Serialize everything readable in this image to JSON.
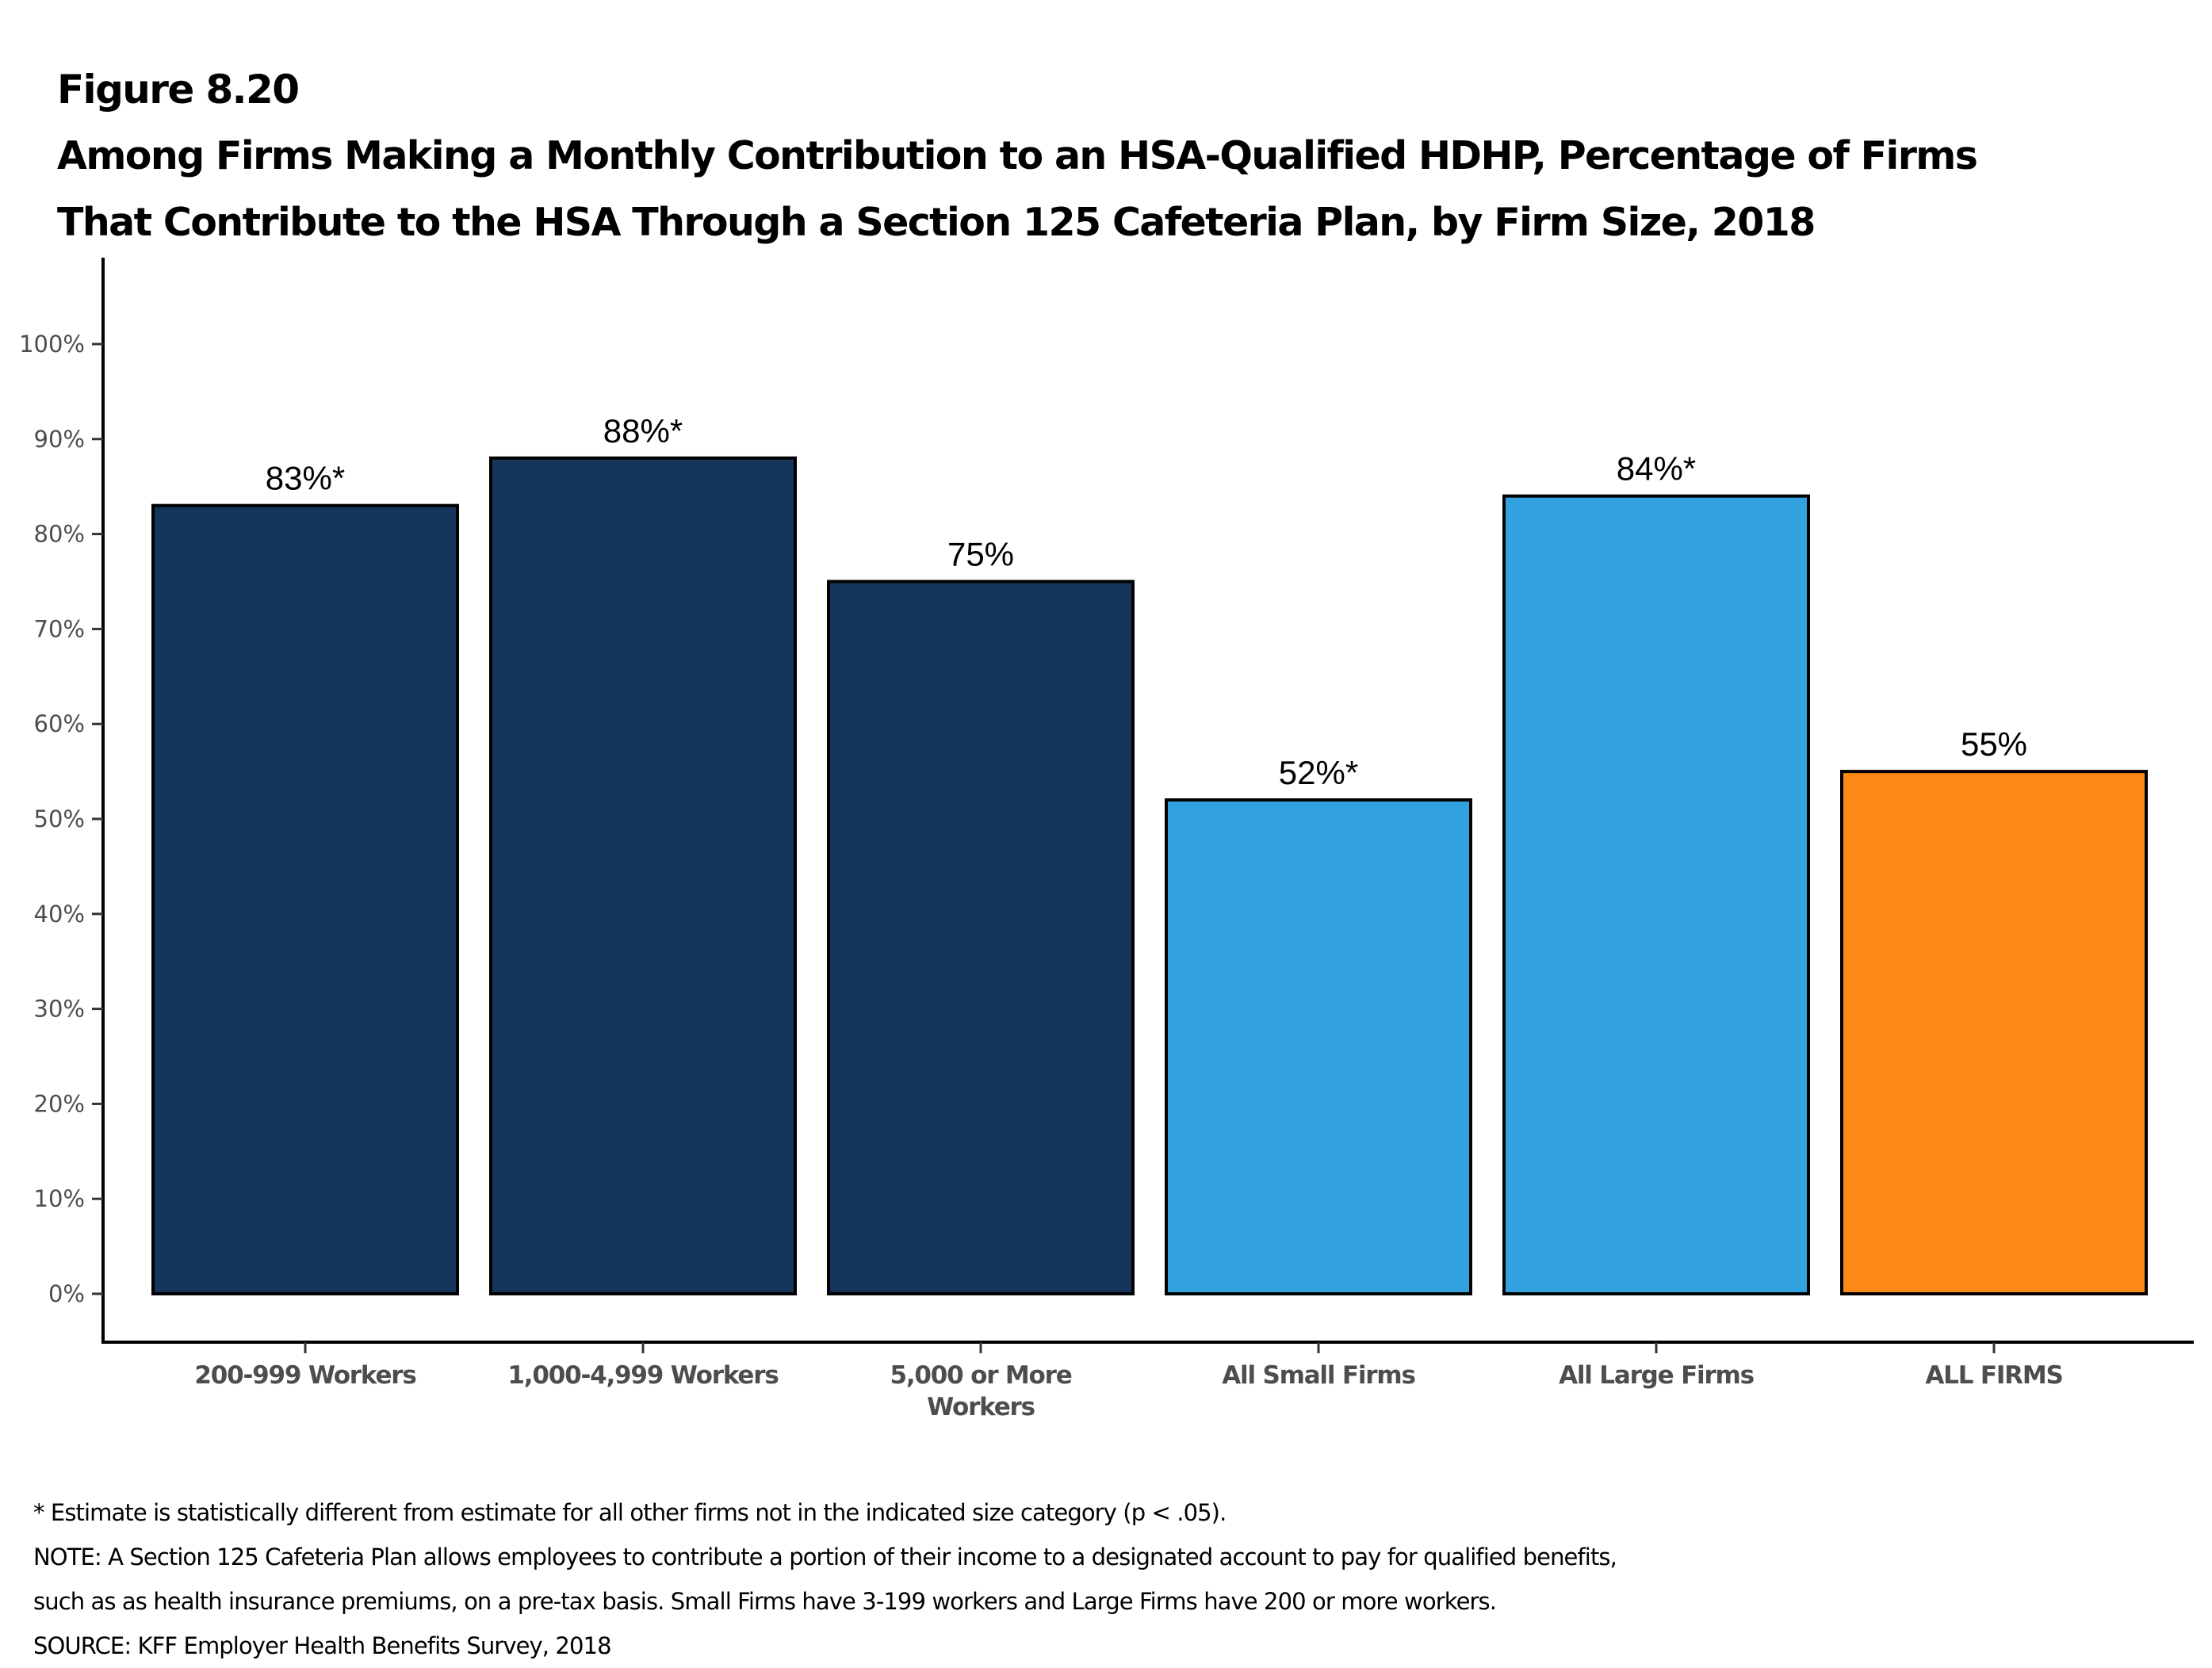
{
  "header": {
    "figure_number": "Figure 8.20",
    "title_lines": [
      "Among Firms Making a Monthly Contribution to an HSA-Qualified HDHP, Percentage of Firms",
      "That Contribute to the HSA Through a Section 125 Cafeteria Plan, by Firm Size, 2018"
    ]
  },
  "chart_data": {
    "type": "bar",
    "title": "Among Firms Making a Monthly Contribution to an HSA-Qualified HDHP, Percentage of Firms That Contribute to the HSA Through a Section 125 Cafeteria Plan, by Firm Size, 2018",
    "xlabel": "",
    "ylabel": "",
    "categories": [
      [
        "200-999 Workers"
      ],
      [
        "1,000-4,999 Workers"
      ],
      [
        "5,000 or More",
        "Workers"
      ],
      [
        "All Small Firms"
      ],
      [
        "All Large Firms"
      ],
      [
        "ALL FIRMS"
      ]
    ],
    "values": [
      83,
      88,
      75,
      52,
      84,
      55
    ],
    "data_labels": [
      "83%*",
      "88%*",
      "75%",
      "52%*",
      "84%*",
      "55%"
    ],
    "significant": [
      true,
      true,
      false,
      true,
      true,
      false
    ],
    "bar_colors": [
      "#15355a",
      "#15355a",
      "#15355a",
      "#32a2df",
      "#32a2df",
      "#fd8a16"
    ],
    "bar_outline_color": "#000000",
    "yticks": [
      0,
      10,
      20,
      30,
      40,
      50,
      60,
      70,
      80,
      90,
      100
    ],
    "ytick_labels": [
      "0%",
      "10%",
      "20%",
      "30%",
      "40%",
      "50%",
      "60%",
      "70%",
      "80%",
      "90%",
      "100%"
    ],
    "ylim": [
      0,
      100
    ],
    "grid": false,
    "legend": "none"
  },
  "footnotes": [
    "* Estimate is statistically different from estimate for all other firms not in the indicated size category (p < .05).",
    "NOTE: A Section 125 Cafeteria Plan allows employees to contribute a portion of their income to a designated account to pay for qualified benefits,",
    "such as as health insurance premiums, on a pre-tax basis. Small Firms have 3-199 workers and Large Firms have 200 or more workers.",
    "SOURCE: KFF Employer Health Benefits Survey, 2018"
  ]
}
